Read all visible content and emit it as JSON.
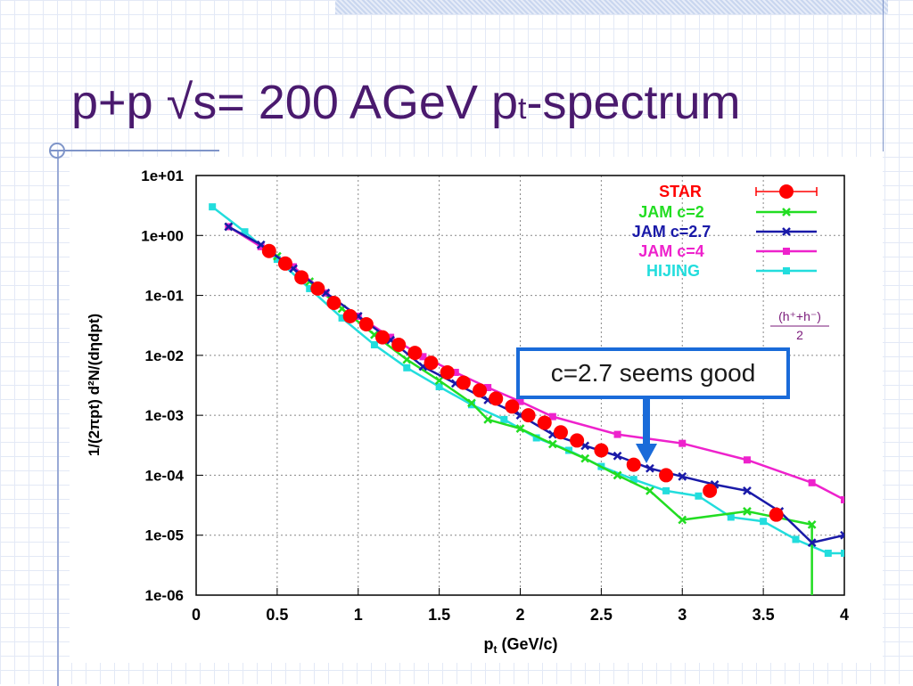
{
  "slide": {
    "title_main": "p+p √s= 200 AGeV p",
    "title_sub": "t",
    "title_end": "-spectrum",
    "callout_text": "c=2.7 seems good"
  },
  "colors": {
    "title": "#4a1a6e",
    "callout_border": "#1a6bd9",
    "arrow": "#1a6bd9",
    "annotation": "#7a1a7a"
  },
  "annotation": {
    "numerator": "(h⁺+h⁻)",
    "denominator": "2"
  },
  "chart_data": {
    "type": "scatter",
    "xlabel_main": "p",
    "xlabel_sub": "t",
    "xlabel_end": " (GeV/c)",
    "ylabel": "1/(2πpt) d²N/(dηdpt)",
    "y_scale": "log",
    "xlim": [
      0,
      4
    ],
    "ylim": [
      1e-06,
      10
    ],
    "x_ticks": [
      "0",
      "0.5",
      "1",
      "1.5",
      "2",
      "2.5",
      "3",
      "3.5",
      "4"
    ],
    "y_ticks": [
      "1e+01",
      "1e+00",
      "1e-01",
      "1e-02",
      "1e-03",
      "1e-04",
      "1e-05",
      "1e-06"
    ],
    "grid": true,
    "legend_position": "top-right",
    "series": [
      {
        "name": "STAR",
        "color": "#ff0000",
        "marker": "circle",
        "line": false,
        "x": [
          0.45,
          0.55,
          0.65,
          0.75,
          0.85,
          0.95,
          1.05,
          1.15,
          1.25,
          1.35,
          1.45,
          1.55,
          1.65,
          1.75,
          1.85,
          1.95,
          2.05,
          2.15,
          2.25,
          2.35,
          2.5,
          2.7,
          2.9,
          3.17,
          3.58
        ],
        "y": [
          0.55,
          0.34,
          0.2,
          0.13,
          0.075,
          0.045,
          0.033,
          0.02,
          0.015,
          0.011,
          0.0075,
          0.0052,
          0.0035,
          0.0026,
          0.0019,
          0.0014,
          0.001,
          0.00075,
          0.00052,
          0.00038,
          0.00026,
          0.00015,
          0.0001,
          5.5e-05,
          2.2e-05
        ]
      },
      {
        "name": "JAM c=2",
        "color": "#22dd22",
        "marker": "x",
        "line": true,
        "x": [
          0.2,
          0.5,
          0.7,
          0.9,
          1.1,
          1.3,
          1.5,
          1.7,
          1.8,
          2.0,
          2.2,
          2.4,
          2.6,
          2.8,
          3.0,
          3.4,
          3.8,
          3.8
        ],
        "y": [
          1.4,
          0.45,
          0.17,
          0.06,
          0.022,
          0.0085,
          0.0038,
          0.0016,
          0.00085,
          0.0006,
          0.00033,
          0.00019,
          0.0001,
          5.5e-05,
          1.8e-05,
          2.5e-05,
          1.5e-05,
          1e-06
        ]
      },
      {
        "name": "JAM c=2.7",
        "color": "#1a1aa8",
        "marker": "x",
        "line": true,
        "x": [
          0.2,
          0.4,
          0.6,
          0.8,
          1.0,
          1.2,
          1.4,
          1.6,
          1.8,
          2.0,
          2.2,
          2.4,
          2.6,
          2.8,
          3.0,
          3.2,
          3.4,
          3.6,
          3.8,
          4.0
        ],
        "y": [
          1.4,
          0.7,
          0.28,
          0.11,
          0.045,
          0.018,
          0.0065,
          0.0034,
          0.0018,
          0.001,
          0.00048,
          0.00031,
          0.00021,
          0.00013,
          9.5e-05,
          7e-05,
          5.5e-05,
          2.5e-05,
          7.5e-06,
          1e-05
        ]
      },
      {
        "name": "JAM c=4",
        "color": "#ee22cc",
        "marker": "square",
        "line": true,
        "x": [
          0.2,
          0.4,
          0.6,
          0.8,
          1.0,
          1.2,
          1.4,
          1.6,
          1.8,
          2.0,
          2.2,
          2.6,
          3.0,
          3.4,
          3.8,
          4.0
        ],
        "y": [
          1.4,
          0.65,
          0.3,
          0.11,
          0.045,
          0.02,
          0.0095,
          0.0052,
          0.0029,
          0.0017,
          0.00095,
          0.00048,
          0.00034,
          0.00018,
          7.5e-05,
          3.9e-05
        ]
      },
      {
        "name": "HIJING",
        "color": "#22dddd",
        "marker": "square",
        "line": true,
        "x": [
          0.1,
          0.3,
          0.5,
          0.7,
          0.9,
          1.1,
          1.3,
          1.5,
          1.7,
          1.9,
          2.1,
          2.3,
          2.5,
          2.7,
          2.9,
          3.1,
          3.3,
          3.5,
          3.7,
          3.9,
          4.0
        ],
        "y": [
          3.0,
          1.15,
          0.4,
          0.13,
          0.042,
          0.015,
          0.0062,
          0.003,
          0.0015,
          0.00085,
          0.00042,
          0.00026,
          0.00014,
          8.5e-05,
          5.5e-05,
          4.5e-05,
          2e-05,
          1.7e-05,
          8.5e-06,
          5e-06,
          5e-06
        ]
      }
    ]
  }
}
